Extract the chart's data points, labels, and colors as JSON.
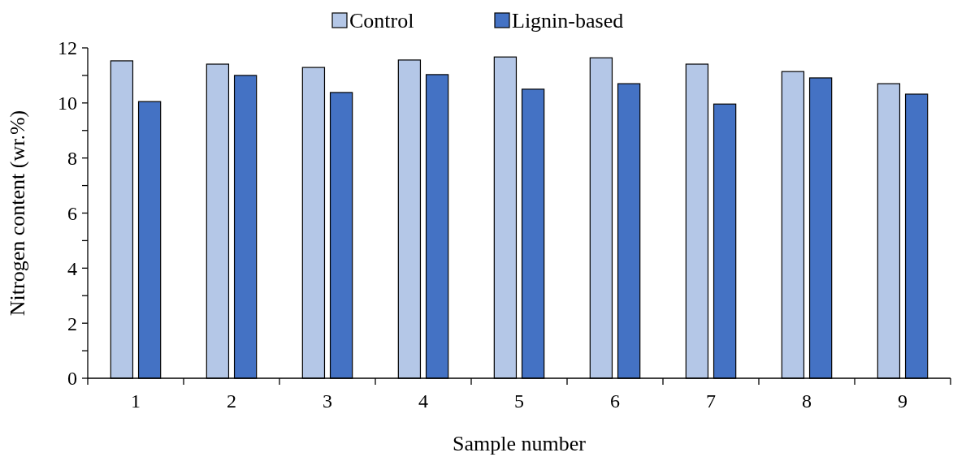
{
  "chart_data": {
    "type": "bar",
    "xlabel": "Sample number",
    "ylabel": "Nitrogen content (wr.%)",
    "categories": [
      "1",
      "2",
      "3",
      "4",
      "5",
      "6",
      "7",
      "8",
      "9"
    ],
    "series": [
      {
        "name": "Control",
        "color": "#b4c7e7",
        "values": [
          11.53,
          11.41,
          11.29,
          11.56,
          11.67,
          11.64,
          11.41,
          11.14,
          10.7
        ]
      },
      {
        "name": "Lignin-based",
        "color": "#4472c4",
        "values": [
          10.05,
          11.0,
          10.38,
          11.03,
          10.5,
          10.7,
          9.96,
          10.91,
          10.32
        ]
      }
    ],
    "ylim": [
      0,
      12
    ],
    "yticks": [
      0,
      {
        "value": 1,
        "label": null
      },
      2,
      {
        "value": 3,
        "label": null
      },
      4,
      {
        "value": 5,
        "label": null
      },
      6,
      {
        "value": 7,
        "label": null
      },
      8,
      {
        "value": 9,
        "label": null
      },
      10,
      {
        "value": 11,
        "label": null
      },
      12
    ],
    "grid": false,
    "legend": "top"
  }
}
